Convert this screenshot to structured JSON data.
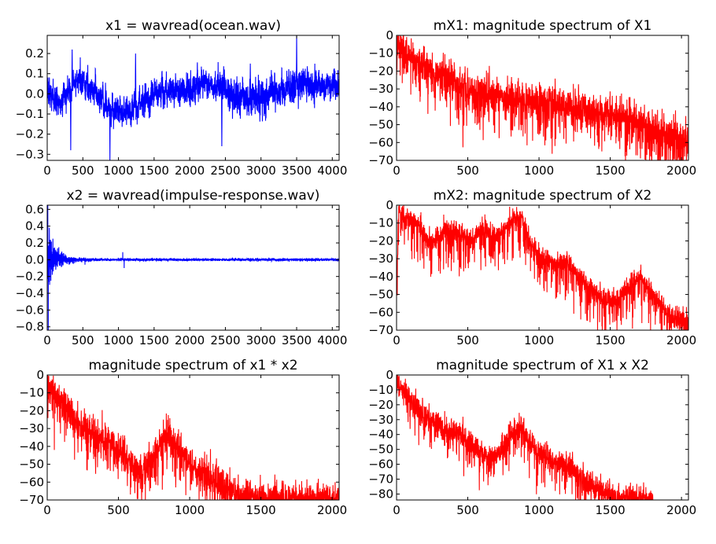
{
  "chart_data": [
    {
      "id": "x1",
      "type": "line",
      "title": "x1 = wavread(ocean.wav)",
      "color": "#0000ff",
      "xlim": [
        0,
        4096
      ],
      "ylim": [
        -0.33,
        0.29
      ],
      "xticks": [
        0,
        500,
        1000,
        1500,
        2000,
        2500,
        3000,
        3500,
        4000
      ],
      "yticks": [
        -0.3,
        -0.2,
        -0.1,
        0.0,
        0.1,
        0.2
      ],
      "ytick_labels": [
        "−0.3",
        "−0.2",
        "−0.1",
        "0.0",
        "0.1",
        "0.2"
      ],
      "n": 4096,
      "envelope": [
        [
          0,
          0.07
        ],
        [
          500,
          0.06
        ],
        [
          1000,
          0.07
        ],
        [
          2000,
          0.07
        ],
        [
          3000,
          0.08
        ],
        [
          4096,
          0.07
        ]
      ],
      "trend": [
        [
          0,
          0.03
        ],
        [
          150,
          -0.05
        ],
        [
          450,
          0.08
        ],
        [
          850,
          -0.06
        ],
        [
          1100,
          -0.1
        ],
        [
          1500,
          0.0
        ],
        [
          1900,
          0.02
        ],
        [
          2300,
          0.05
        ],
        [
          2800,
          -0.03
        ],
        [
          3200,
          0.0
        ],
        [
          3550,
          0.05
        ],
        [
          4096,
          0.04
        ]
      ],
      "spikes": [
        [
          880,
          -0.33
        ],
        [
          3500,
          0.29
        ],
        [
          330,
          -0.28
        ],
        [
          2450,
          -0.26
        ],
        [
          350,
          0.22
        ],
        [
          1240,
          0.2
        ],
        [
          2850,
          0.15
        ]
      ]
    },
    {
      "id": "mX1",
      "type": "line",
      "title": "mX1: magnitude spectrum of X1",
      "color": "#ff0000",
      "xlim": [
        0,
        2049
      ],
      "ylim": [
        -70,
        0
      ],
      "xticks": [
        0,
        500,
        1000,
        1500,
        2000
      ],
      "yticks": [
        -70,
        -60,
        -50,
        -40,
        -30,
        -20,
        -10,
        0
      ],
      "ytick_labels": [
        "−70",
        "−60",
        "−50",
        "−40",
        "−30",
        "−20",
        "−10",
        "0"
      ],
      "n": 2049,
      "trend": [
        [
          0,
          -3
        ],
        [
          60,
          -10
        ],
        [
          250,
          -20
        ],
        [
          500,
          -30
        ],
        [
          750,
          -34
        ],
        [
          1000,
          -37
        ],
        [
          1250,
          -40
        ],
        [
          1500,
          -44
        ],
        [
          1750,
          -50
        ],
        [
          2049,
          -60
        ]
      ],
      "noise": 5,
      "dips": 14
    },
    {
      "id": "x2",
      "type": "line",
      "title": "x2 = wavread(impulse-response.wav)",
      "color": "#0000ff",
      "xlim": [
        0,
        4096
      ],
      "ylim": [
        -0.84,
        0.65
      ],
      "xticks": [
        0,
        500,
        1000,
        1500,
        2000,
        2500,
        3000,
        3500,
        4000
      ],
      "yticks": [
        -0.8,
        -0.6,
        -0.4,
        -0.2,
        0.0,
        0.2,
        0.4,
        0.6
      ],
      "ytick_labels": [
        "−0.8",
        "−0.6",
        "−0.4",
        "−0.2",
        "0.0",
        "0.2",
        "0.4",
        "0.6"
      ],
      "n": 4096,
      "impulse": [
        [
          0,
          0.0
        ],
        [
          8,
          0.65
        ],
        [
          15,
          -0.84
        ],
        [
          30,
          0.38
        ],
        [
          50,
          -0.18
        ],
        [
          80,
          0.25
        ],
        [
          120,
          -0.12
        ],
        [
          180,
          0.06
        ]
      ],
      "decay_amp": 0.22,
      "decay_tau": 140,
      "floor_amp": 0.012,
      "bursts": [
        [
          1060,
          0.09
        ],
        [
          1080,
          -0.1
        ],
        [
          530,
          -0.06
        ]
      ]
    },
    {
      "id": "mX2",
      "type": "line",
      "title": "mX2: magnitude spectrum of X2",
      "color": "#ff0000",
      "xlim": [
        0,
        2049
      ],
      "ylim": [
        -70,
        0
      ],
      "xticks": [
        0,
        500,
        1000,
        1500,
        2000
      ],
      "yticks": [
        -70,
        -60,
        -50,
        -40,
        -30,
        -20,
        -10,
        0
      ],
      "ytick_labels": [
        "−70",
        "−60",
        "−50",
        "−40",
        "−30",
        "−20",
        "−10",
        "0"
      ],
      "n": 2049,
      "trend": [
        [
          0,
          -45
        ],
        [
          15,
          -2
        ],
        [
          60,
          -8
        ],
        [
          150,
          -10
        ],
        [
          250,
          -22
        ],
        [
          330,
          -15
        ],
        [
          420,
          -14
        ],
        [
          520,
          -20
        ],
        [
          600,
          -12
        ],
        [
          700,
          -18
        ],
        [
          820,
          -8
        ],
        [
          880,
          -7
        ],
        [
          930,
          -20
        ],
        [
          1000,
          -28
        ],
        [
          1100,
          -32
        ],
        [
          1200,
          -32
        ],
        [
          1300,
          -42
        ],
        [
          1450,
          -52
        ],
        [
          1550,
          -54
        ],
        [
          1600,
          -48
        ],
        [
          1700,
          -40
        ],
        [
          1800,
          -50
        ],
        [
          1900,
          -60
        ],
        [
          2049,
          -65
        ]
      ],
      "noise": 3,
      "dips": 12
    },
    {
      "id": "y1",
      "type": "line",
      "title": "magnitude spectrum of x1 * x2",
      "color": "#ff0000",
      "xlim": [
        0,
        2049
      ],
      "ylim": [
        -70,
        0
      ],
      "xticks": [
        0,
        500,
        1000,
        1500,
        2000
      ],
      "yticks": [
        -70,
        -60,
        -50,
        -40,
        -30,
        -20,
        -10,
        0
      ],
      "ytick_labels": [
        "−70",
        "−60",
        "−50",
        "−40",
        "−30",
        "−20",
        "−10",
        "0"
      ],
      "n": 2049,
      "trend": [
        [
          0,
          -5
        ],
        [
          50,
          -10
        ],
        [
          200,
          -25
        ],
        [
          350,
          -35
        ],
        [
          450,
          -38
        ],
        [
          550,
          -45
        ],
        [
          650,
          -55
        ],
        [
          700,
          -52
        ],
        [
          800,
          -38
        ],
        [
          850,
          -33
        ],
        [
          950,
          -45
        ],
        [
          1000,
          -50
        ],
        [
          1100,
          -55
        ],
        [
          1200,
          -60
        ],
        [
          1300,
          -65
        ],
        [
          1400,
          -68
        ],
        [
          1600,
          -69
        ],
        [
          2049,
          -70
        ]
      ],
      "noise": 4.5,
      "dips": 8,
      "floor": -70
    },
    {
      "id": "y2",
      "type": "line",
      "title": "magnitude spectrum of X1 x X2",
      "color": "#ff0000",
      "xlim": [
        0,
        2049
      ],
      "ylim": [
        -84,
        0
      ],
      "xticks": [
        0,
        500,
        1000,
        1500,
        2000
      ],
      "yticks": [
        -80,
        -70,
        -60,
        -50,
        -40,
        -30,
        -20,
        -10,
        0
      ],
      "ytick_labels": [
        "−80",
        "−70",
        "−60",
        "−50",
        "−40",
        "−30",
        "−20",
        "−10",
        "0"
      ],
      "n": 1800,
      "trend": [
        [
          0,
          -5
        ],
        [
          50,
          -12
        ],
        [
          200,
          -28
        ],
        [
          350,
          -38
        ],
        [
          450,
          -40
        ],
        [
          550,
          -48
        ],
        [
          650,
          -58
        ],
        [
          700,
          -55
        ],
        [
          800,
          -40
        ],
        [
          880,
          -36
        ],
        [
          950,
          -48
        ],
        [
          1000,
          -52
        ],
        [
          1100,
          -58
        ],
        [
          1200,
          -62
        ],
        [
          1300,
          -70
        ],
        [
          1400,
          -76
        ],
        [
          1550,
          -82
        ],
        [
          1700,
          -83
        ],
        [
          1780,
          -84
        ]
      ],
      "noise": 4.5,
      "dips": 8,
      "floor": -84
    }
  ]
}
